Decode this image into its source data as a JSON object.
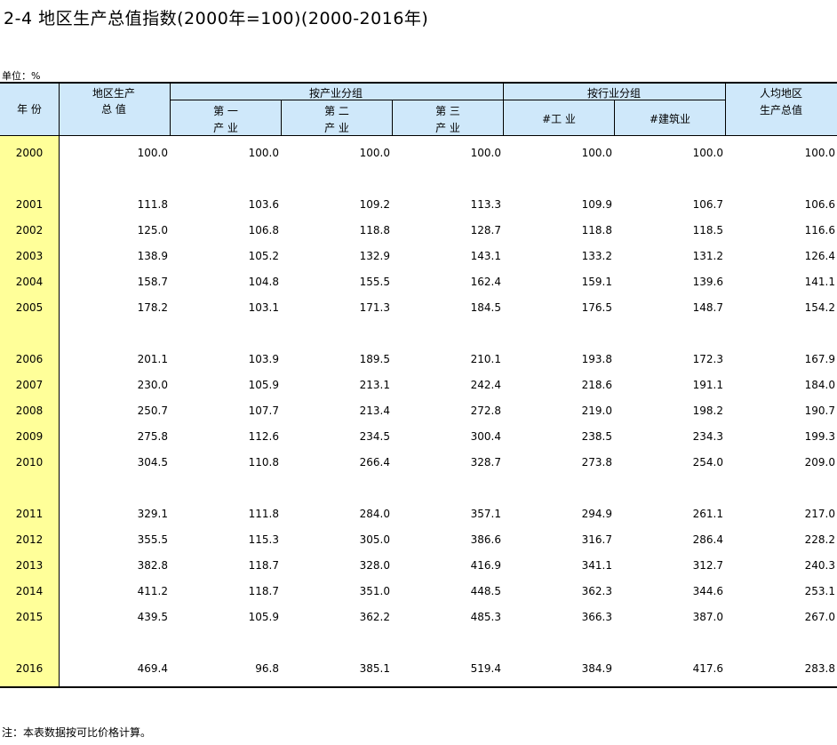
{
  "title": "2-4   地区生产总值指数(2000年=100)(2000-2016年)",
  "unit_label": "单位：%",
  "header": {
    "year": "年 份",
    "gdp": [
      "地区生产",
      "总 值"
    ],
    "by_industry": "按产业分组",
    "primary": [
      "第 一",
      "产 业"
    ],
    "secondary": [
      "第 二",
      "产 业"
    ],
    "tertiary": [
      "第 三",
      "产 业"
    ],
    "by_sector": "按行业分组",
    "industry": "#工 业",
    "construction": "#建筑业",
    "per_capita": [
      "人均地区",
      "生产总值"
    ]
  },
  "rows": [
    [
      "2000",
      "100.0",
      "100.0",
      "100.0",
      "100.0",
      "100.0",
      "100.0",
      "100.0"
    ],
    [
      "2001",
      "111.8",
      "103.6",
      "109.2",
      "113.3",
      "109.9",
      "106.7",
      "106.6"
    ],
    [
      "2002",
      "125.0",
      "106.8",
      "118.8",
      "128.7",
      "118.8",
      "118.5",
      "116.6"
    ],
    [
      "2003",
      "138.9",
      "105.2",
      "132.9",
      "143.1",
      "133.2",
      "131.2",
      "126.4"
    ],
    [
      "2004",
      "158.7",
      "104.8",
      "155.5",
      "162.4",
      "159.1",
      "139.6",
      "141.1"
    ],
    [
      "2005",
      "178.2",
      "103.1",
      "171.3",
      "184.5",
      "176.5",
      "148.7",
      "154.2"
    ],
    [
      "2006",
      "201.1",
      "103.9",
      "189.5",
      "210.1",
      "193.8",
      "172.3",
      "167.9"
    ],
    [
      "2007",
      "230.0",
      "105.9",
      "213.1",
      "242.4",
      "218.6",
      "191.1",
      "184.0"
    ],
    [
      "2008",
      "250.7",
      "107.7",
      "213.4",
      "272.8",
      "219.0",
      "198.2",
      "190.7"
    ],
    [
      "2009",
      "275.8",
      "112.6",
      "234.5",
      "300.4",
      "238.5",
      "234.3",
      "199.3"
    ],
    [
      "2010",
      "304.5",
      "110.8",
      "266.4",
      "328.7",
      "273.8",
      "254.0",
      "209.0"
    ],
    [
      "2011",
      "329.1",
      "111.8",
      "284.0",
      "357.1",
      "294.9",
      "261.1",
      "217.0"
    ],
    [
      "2012",
      "355.5",
      "115.3",
      "305.0",
      "386.6",
      "316.7",
      "286.4",
      "228.2"
    ],
    [
      "2013",
      "382.8",
      "118.7",
      "328.0",
      "416.9",
      "341.1",
      "312.7",
      "240.3"
    ],
    [
      "2014",
      "411.2",
      "118.7",
      "351.0",
      "448.5",
      "362.3",
      "344.6",
      "253.1"
    ],
    [
      "2015",
      "439.5",
      "105.9",
      "362.2",
      "485.3",
      "366.3",
      "387.0",
      "267.0"
    ],
    [
      "2016",
      "469.4",
      "96.8",
      "385.1",
      "519.4",
      "384.9",
      "417.6",
      "283.8"
    ]
  ],
  "note": "注：本表数据按可比价格计算。"
}
